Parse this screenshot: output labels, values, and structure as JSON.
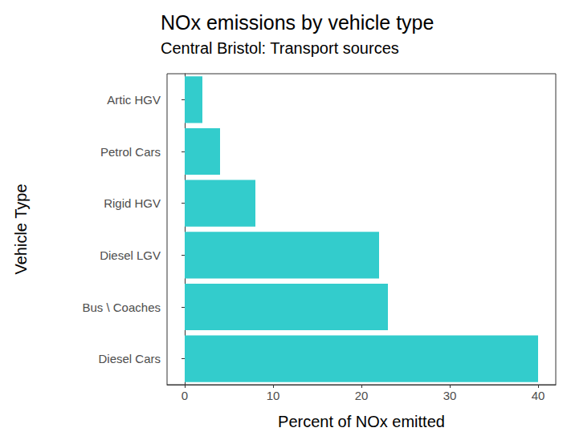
{
  "chart_data": {
    "type": "bar",
    "title": "NOx emissions by vehicle type",
    "subtitle": "Central Bristol: Transport sources",
    "x_label": "Percent of NOx emitted",
    "y_label": "Vehicle Type",
    "orientation": "horizontal",
    "categories": [
      "Artic HGV",
      "Petrol Cars",
      "Rigid HGV",
      "Diesel LGV",
      "Bus \\ Coaches",
      "Diesel Cars"
    ],
    "values": [
      2,
      4,
      8,
      22,
      23,
      40
    ],
    "color": "#33cccc",
    "xlim": [
      -2,
      42
    ],
    "xticks": [
      0,
      10,
      20,
      30,
      40
    ],
    "grid": false
  }
}
